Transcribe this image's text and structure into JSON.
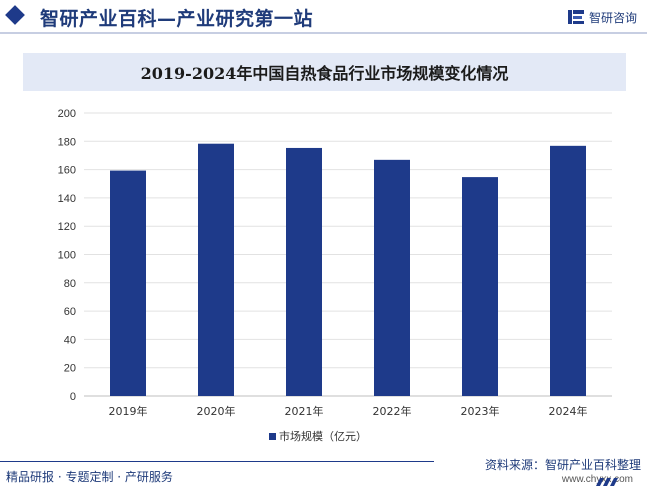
{
  "header": {
    "site_title": "智研产业百科—产业研究第一站",
    "brand_name": "智研咨询"
  },
  "chart_data": {
    "type": "bar",
    "title": "2019-2024年中国自热食品行业市场规模变化情况",
    "categories": [
      "2019年",
      "2020年",
      "2021年",
      "2022年",
      "2023年",
      "2024年"
    ],
    "series": [
      {
        "name": "市场规模（亿元）",
        "values": [
          159.3,
          178.3,
          175.3,
          166.9,
          154.7,
          176.8
        ],
        "color": "#1e3a8a"
      }
    ],
    "xlabel": "",
    "ylabel": "",
    "ylim": [
      0,
      200
    ],
    "yticks": [
      0,
      20,
      40,
      60,
      80,
      100,
      120,
      140,
      160,
      180,
      200
    ],
    "grid": true,
    "legend_position": "bottom"
  },
  "footer": {
    "left_text": "精品研报 · 专题定制 · 产研服务",
    "source_text": "资料来源：智研产业百科整理",
    "url": "www.chyxx.com"
  }
}
